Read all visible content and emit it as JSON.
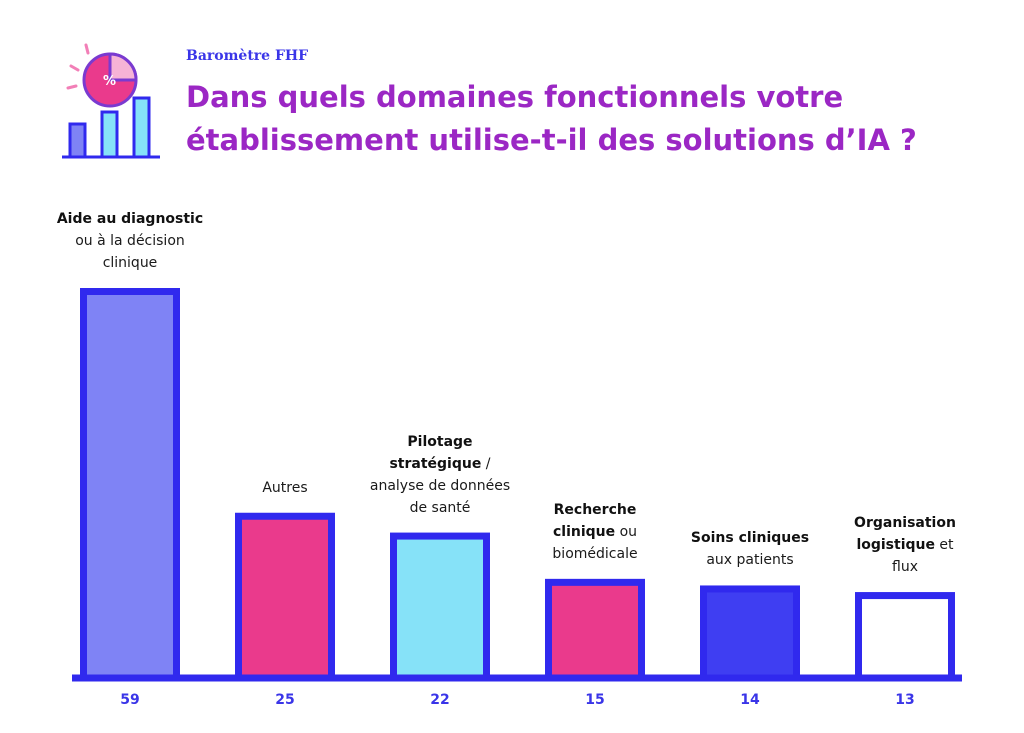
{
  "header": {
    "kicker": "Baromètre FHF",
    "title_line1": "Dans quels domaines fonctionnels votre",
    "title_line2": "établissement utilise-t-il des solutions d’IA ?",
    "icon": "chart-percent-icon"
  },
  "chart_data": {
    "type": "bar",
    "title": "Dans quels domaines fonctionnels votre établissement utilise-t-il des solutions d’IA ?",
    "categories": [
      "Aide au diagnostic ou à la décision clinique",
      "Autres",
      "Pilotage stratégique / analyse de données de santé",
      "Recherche clinique ou biomédicale",
      "Soins cliniques aux patients",
      "Organisation logistique et flux"
    ],
    "values": [
      59,
      25,
      22,
      15,
      14,
      13
    ],
    "value_labels": [
      "59",
      "25",
      "22",
      "15",
      "14",
      "13"
    ],
    "label_parts": [
      [
        {
          "text": "Aide au diagnostic",
          "bold": true
        },
        {
          "text": "ou à la décision",
          "bold": false
        },
        {
          "text": "clinique",
          "bold": false
        }
      ],
      [
        {
          "text": "Autres",
          "bold": false
        }
      ],
      [
        {
          "text": "Pilotage",
          "bold": true
        },
        {
          "text": "stratégique",
          "bold": true
        },
        {
          "text": " /",
          "bold": false
        },
        {
          "text": "analyse de données",
          "bold": false
        },
        {
          "text": "de santé",
          "bold": false
        }
      ],
      [
        {
          "text": "Recherche",
          "bold": true
        },
        {
          "text": "clinique",
          "bold": true
        },
        {
          "text": " ou",
          "bold": false
        },
        {
          "text": "biomédicale",
          "bold": false
        }
      ],
      [
        {
          "text": "Soins cliniques",
          "bold": true
        },
        {
          "text": "aux patients",
          "bold": false
        }
      ],
      [
        {
          "text": "Organisation",
          "bold": true
        },
        {
          "text": "logistique",
          "bold": true
        },
        {
          "text": " et",
          "bold": false
        },
        {
          "text": "flux",
          "bold": false
        }
      ]
    ],
    "bar_colors": [
      "#7f83f5",
      "#ea3a8c",
      "#86e2f8",
      "#ea3a8c",
      "#3f3ef2",
      "#ffffff"
    ],
    "outline_color": "#3029ee",
    "xlabel": "",
    "ylabel": "",
    "ylim": [
      0,
      59
    ],
    "grid": false,
    "legend": "none"
  }
}
